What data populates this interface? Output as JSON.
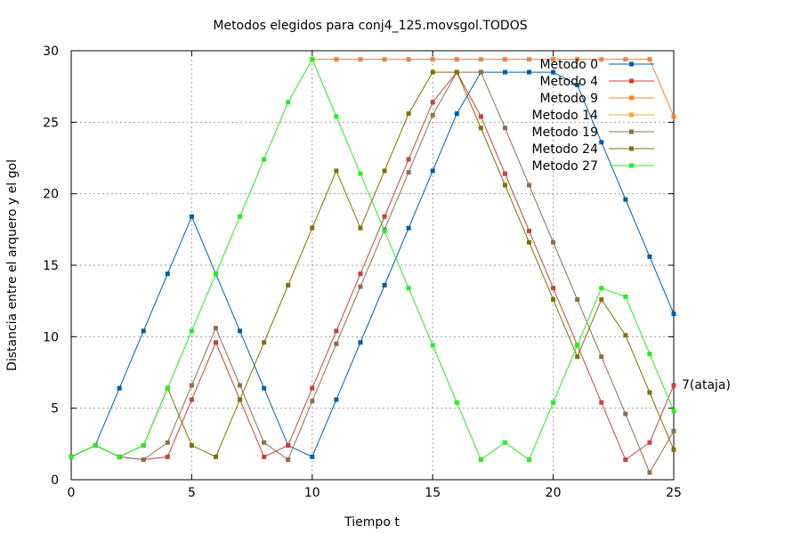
{
  "chart_data": {
    "type": "line",
    "title": "Metodos elegidos para conj4_125.movsgol.TODOS",
    "xlabel": "Tiempo t",
    "ylabel": "Distancia entre el arquero y el gol",
    "xlim": [
      0,
      25
    ],
    "ylim": [
      0,
      30
    ],
    "xticks": [
      0,
      5,
      10,
      15,
      20,
      25
    ],
    "yticks": [
      0,
      5,
      10,
      15,
      20,
      25,
      30
    ],
    "grid": true,
    "legend_position": "top-right",
    "annotation": "7(ataja)",
    "annotation_point": [
      25,
      6.6
    ],
    "series": [
      {
        "name": "Metodo 0",
        "color": "#005ea8",
        "x": [
          0,
          1,
          2,
          3,
          4,
          5,
          6,
          7,
          8,
          9,
          10,
          11,
          12,
          13,
          14,
          15,
          16,
          17,
          18,
          19,
          20,
          21,
          22,
          23,
          24,
          25
        ],
        "y": [
          1.6,
          2.4,
          6.4,
          10.4,
          14.4,
          18.4,
          14.4,
          10.4,
          6.4,
          2.4,
          1.6,
          5.6,
          9.6,
          13.6,
          17.6,
          21.6,
          25.6,
          28.5,
          28.5,
          28.5,
          28.5,
          27.6,
          23.6,
          19.6,
          15.6,
          11.6
        ]
      },
      {
        "name": "Metodo 4",
        "color": "#c8403c",
        "x": [
          0,
          1,
          2,
          3,
          4,
          5,
          6,
          7,
          8,
          9,
          10,
          11,
          12,
          13,
          14,
          15,
          16,
          17,
          18,
          19,
          20,
          21,
          22,
          23,
          24,
          25
        ],
        "y": [
          1.6,
          2.4,
          1.6,
          1.4,
          1.6,
          5.6,
          9.6,
          5.6,
          1.6,
          2.4,
          6.4,
          10.4,
          14.4,
          18.4,
          22.4,
          26.4,
          28.5,
          25.4,
          21.4,
          17.4,
          13.4,
          9.4,
          5.4,
          1.4,
          2.6,
          6.6
        ]
      },
      {
        "name": "Metodo 9",
        "color": "#ff7f2a",
        "x": [
          10,
          11,
          12,
          13,
          14,
          15,
          16,
          17,
          18,
          19,
          20,
          21,
          22,
          23,
          24,
          25
        ],
        "y": [
          29.4,
          29.4,
          29.4,
          29.4,
          29.4,
          29.4,
          29.4,
          29.4,
          29.4,
          29.4,
          29.4,
          29.4,
          29.4,
          29.4,
          29.4,
          25.4
        ]
      },
      {
        "name": "Metodo 14",
        "color": "#ffa040",
        "x": [],
        "y": []
      },
      {
        "name": "Metodo 19",
        "color": "#8b6f50",
        "x": [
          0,
          1,
          2,
          3,
          4,
          5,
          6,
          7,
          8,
          9,
          10,
          11,
          12,
          13,
          14,
          15,
          16,
          17,
          18,
          19,
          20,
          21,
          22,
          23,
          24,
          25
        ],
        "y": [
          1.6,
          2.4,
          1.6,
          1.4,
          2.6,
          6.6,
          10.6,
          6.6,
          2.6,
          1.4,
          5.5,
          9.5,
          13.5,
          17.5,
          21.5,
          25.5,
          28.5,
          28.5,
          24.6,
          20.6,
          16.6,
          12.6,
          8.6,
          4.6,
          0.5,
          3.4
        ]
      },
      {
        "name": "Metodo 24",
        "color": "#807000",
        "x": [
          0,
          1,
          2,
          3,
          4,
          5,
          6,
          7,
          8,
          9,
          10,
          11,
          12,
          13,
          14,
          15,
          16,
          17,
          18,
          19,
          20,
          21,
          22,
          23,
          24,
          25
        ],
        "y": [
          1.6,
          2.4,
          1.6,
          2.4,
          6.4,
          2.4,
          1.6,
          5.6,
          9.6,
          13.6,
          17.6,
          21.6,
          17.6,
          21.6,
          25.6,
          28.5,
          28.5,
          24.6,
          20.6,
          16.6,
          12.6,
          8.6,
          12.6,
          10.1,
          6.1,
          2.1
        ]
      },
      {
        "name": "Metodo 27",
        "color": "#22ee22",
        "x": [
          0,
          1,
          2,
          3,
          4,
          5,
          6,
          7,
          8,
          9,
          10,
          11,
          12,
          13,
          14,
          15,
          16,
          17,
          18,
          19,
          20,
          21,
          22,
          23,
          24,
          25
        ],
        "y": [
          1.6,
          2.4,
          1.6,
          2.4,
          6.4,
          10.4,
          14.4,
          18.4,
          22.4,
          26.4,
          29.4,
          25.4,
          21.4,
          17.4,
          13.4,
          9.4,
          5.4,
          1.4,
          2.6,
          1.4,
          5.4,
          9.4,
          13.4,
          12.8,
          8.8,
          4.8
        ]
      }
    ]
  }
}
